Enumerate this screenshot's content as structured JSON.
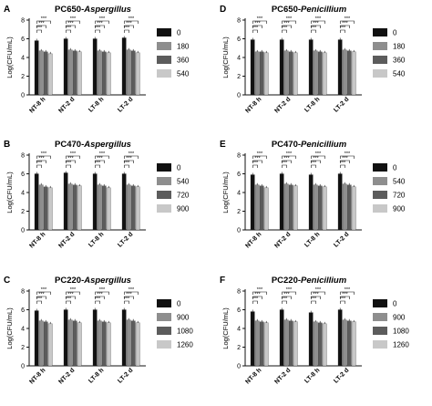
{
  "chart_data": [
    {
      "panel_letter": "A",
      "title_prefix": "PC650-",
      "title_species": "Aspergillus",
      "type": "bar",
      "ylabel": "Log(CFU/mL)",
      "ylim": [
        0,
        8
      ],
      "yticks": [
        "0",
        "2",
        "4",
        "6",
        "8"
      ],
      "categories": [
        "NT-8 h",
        "NT-2 d",
        "LT-8 h",
        "LT-2 d"
      ],
      "series": [
        {
          "name": "0",
          "color": "#111111",
          "values": [
            5.8,
            6.0,
            6.0,
            6.1
          ]
        },
        {
          "name": "180",
          "color": "#8e8e8e",
          "values": [
            4.7,
            4.8,
            4.7,
            4.8
          ]
        },
        {
          "name": "360",
          "color": "#5c5c5c",
          "values": [
            4.6,
            4.7,
            4.6,
            4.7
          ]
        },
        {
          "name": "540",
          "color": "#c8c8c8",
          "values": [
            4.4,
            4.6,
            4.5,
            4.5
          ]
        }
      ],
      "significance": "***",
      "grid": false
    },
    {
      "panel_letter": "B",
      "title_prefix": "PC470-",
      "title_species": "Aspergillus",
      "type": "bar",
      "ylabel": "Log(CFU/mL)",
      "ylim": [
        0,
        8
      ],
      "yticks": [
        "0",
        "2",
        "4",
        "6",
        "8"
      ],
      "categories": [
        "NT-8 h",
        "NT-2 d",
        "LT-8 h",
        "LT-2 d"
      ],
      "series": [
        {
          "name": "0",
          "color": "#111111",
          "values": [
            6.0,
            6.1,
            6.0,
            6.0
          ]
        },
        {
          "name": "540",
          "color": "#8e8e8e",
          "values": [
            4.8,
            4.9,
            4.8,
            4.8
          ]
        },
        {
          "name": "720",
          "color": "#5c5c5c",
          "values": [
            4.6,
            4.8,
            4.7,
            4.7
          ]
        },
        {
          "name": "900",
          "color": "#c8c8c8",
          "values": [
            4.5,
            4.7,
            4.5,
            4.6
          ]
        }
      ],
      "significance": "***",
      "grid": false
    },
    {
      "panel_letter": "C",
      "title_prefix": "PC220-",
      "title_species": "Aspergillus",
      "type": "bar",
      "ylabel": "Log(CFU/mL)",
      "ylim": [
        0,
        8
      ],
      "yticks": [
        "0",
        "2",
        "4",
        "6",
        "8"
      ],
      "categories": [
        "NT-8 h",
        "NT-2 d",
        "LT-8 h",
        "LT-2 d"
      ],
      "series": [
        {
          "name": "0",
          "color": "#111111",
          "values": [
            5.9,
            6.0,
            6.0,
            6.0
          ]
        },
        {
          "name": "900",
          "color": "#8e8e8e",
          "values": [
            4.8,
            4.9,
            4.8,
            4.9
          ]
        },
        {
          "name": "1080",
          "color": "#5c5c5c",
          "values": [
            4.7,
            4.8,
            4.7,
            4.8
          ]
        },
        {
          "name": "1260",
          "color": "#c8c8c8",
          "values": [
            4.5,
            4.6,
            4.6,
            4.6
          ]
        }
      ],
      "significance": "***",
      "grid": false
    },
    {
      "panel_letter": "D",
      "title_prefix": "PC650-",
      "title_species": "Penicillium",
      "type": "bar",
      "ylabel": "Log(CFU/mL)",
      "ylim": [
        0,
        8
      ],
      "yticks": [
        "0",
        "2",
        "4",
        "6",
        "8"
      ],
      "categories": [
        "NT-8 h",
        "NT-2 d",
        "LT-8 h",
        "LT-2 d"
      ],
      "series": [
        {
          "name": "0",
          "color": "#111111",
          "values": [
            5.9,
            5.9,
            5.9,
            5.9
          ]
        },
        {
          "name": "180",
          "color": "#8e8e8e",
          "values": [
            4.6,
            4.7,
            4.7,
            4.8
          ]
        },
        {
          "name": "360",
          "color": "#5c5c5c",
          "values": [
            4.6,
            4.6,
            4.6,
            4.7
          ]
        },
        {
          "name": "540",
          "color": "#c8c8c8",
          "values": [
            4.5,
            4.5,
            4.5,
            4.6
          ]
        }
      ],
      "significance": "***",
      "grid": false
    },
    {
      "panel_letter": "E",
      "title_prefix": "PC470-",
      "title_species": "Penicillium",
      "type": "bar",
      "ylabel": "Log(CFU/mL)",
      "ylim": [
        0,
        8
      ],
      "yticks": [
        "0",
        "2",
        "4",
        "6",
        "8"
      ],
      "categories": [
        "NT-8 h",
        "NT-2 d",
        "LT-8 h",
        "LT-2 d"
      ],
      "series": [
        {
          "name": "0",
          "color": "#111111",
          "values": [
            5.9,
            6.0,
            5.9,
            6.0
          ]
        },
        {
          "name": "540",
          "color": "#8e8e8e",
          "values": [
            4.8,
            4.9,
            4.8,
            4.9
          ]
        },
        {
          "name": "720",
          "color": "#5c5c5c",
          "values": [
            4.7,
            4.8,
            4.7,
            4.8
          ]
        },
        {
          "name": "900",
          "color": "#c8c8c8",
          "values": [
            4.5,
            4.7,
            4.6,
            4.6
          ]
        }
      ],
      "significance": "***",
      "grid": false
    },
    {
      "panel_letter": "F",
      "title_prefix": "PC220-",
      "title_species": "Penicillium",
      "type": "bar",
      "ylabel": "Log(CFU/mL)",
      "ylim": [
        0,
        8
      ],
      "yticks": [
        "0",
        "2",
        "4",
        "6",
        "8"
      ],
      "categories": [
        "NT-8 h",
        "NT-2 d",
        "LT-8 h",
        "LT-2 d"
      ],
      "series": [
        {
          "name": "0",
          "color": "#111111",
          "values": [
            5.8,
            6.0,
            5.7,
            6.0
          ]
        },
        {
          "name": "900",
          "color": "#8e8e8e",
          "values": [
            4.8,
            4.9,
            4.7,
            4.9
          ]
        },
        {
          "name": "1080",
          "color": "#5c5c5c",
          "values": [
            4.7,
            4.8,
            4.6,
            4.8
          ]
        },
        {
          "name": "1260",
          "color": "#c8c8c8",
          "values": [
            4.6,
            4.7,
            4.5,
            4.7
          ]
        }
      ],
      "significance": "***",
      "grid": false
    }
  ]
}
